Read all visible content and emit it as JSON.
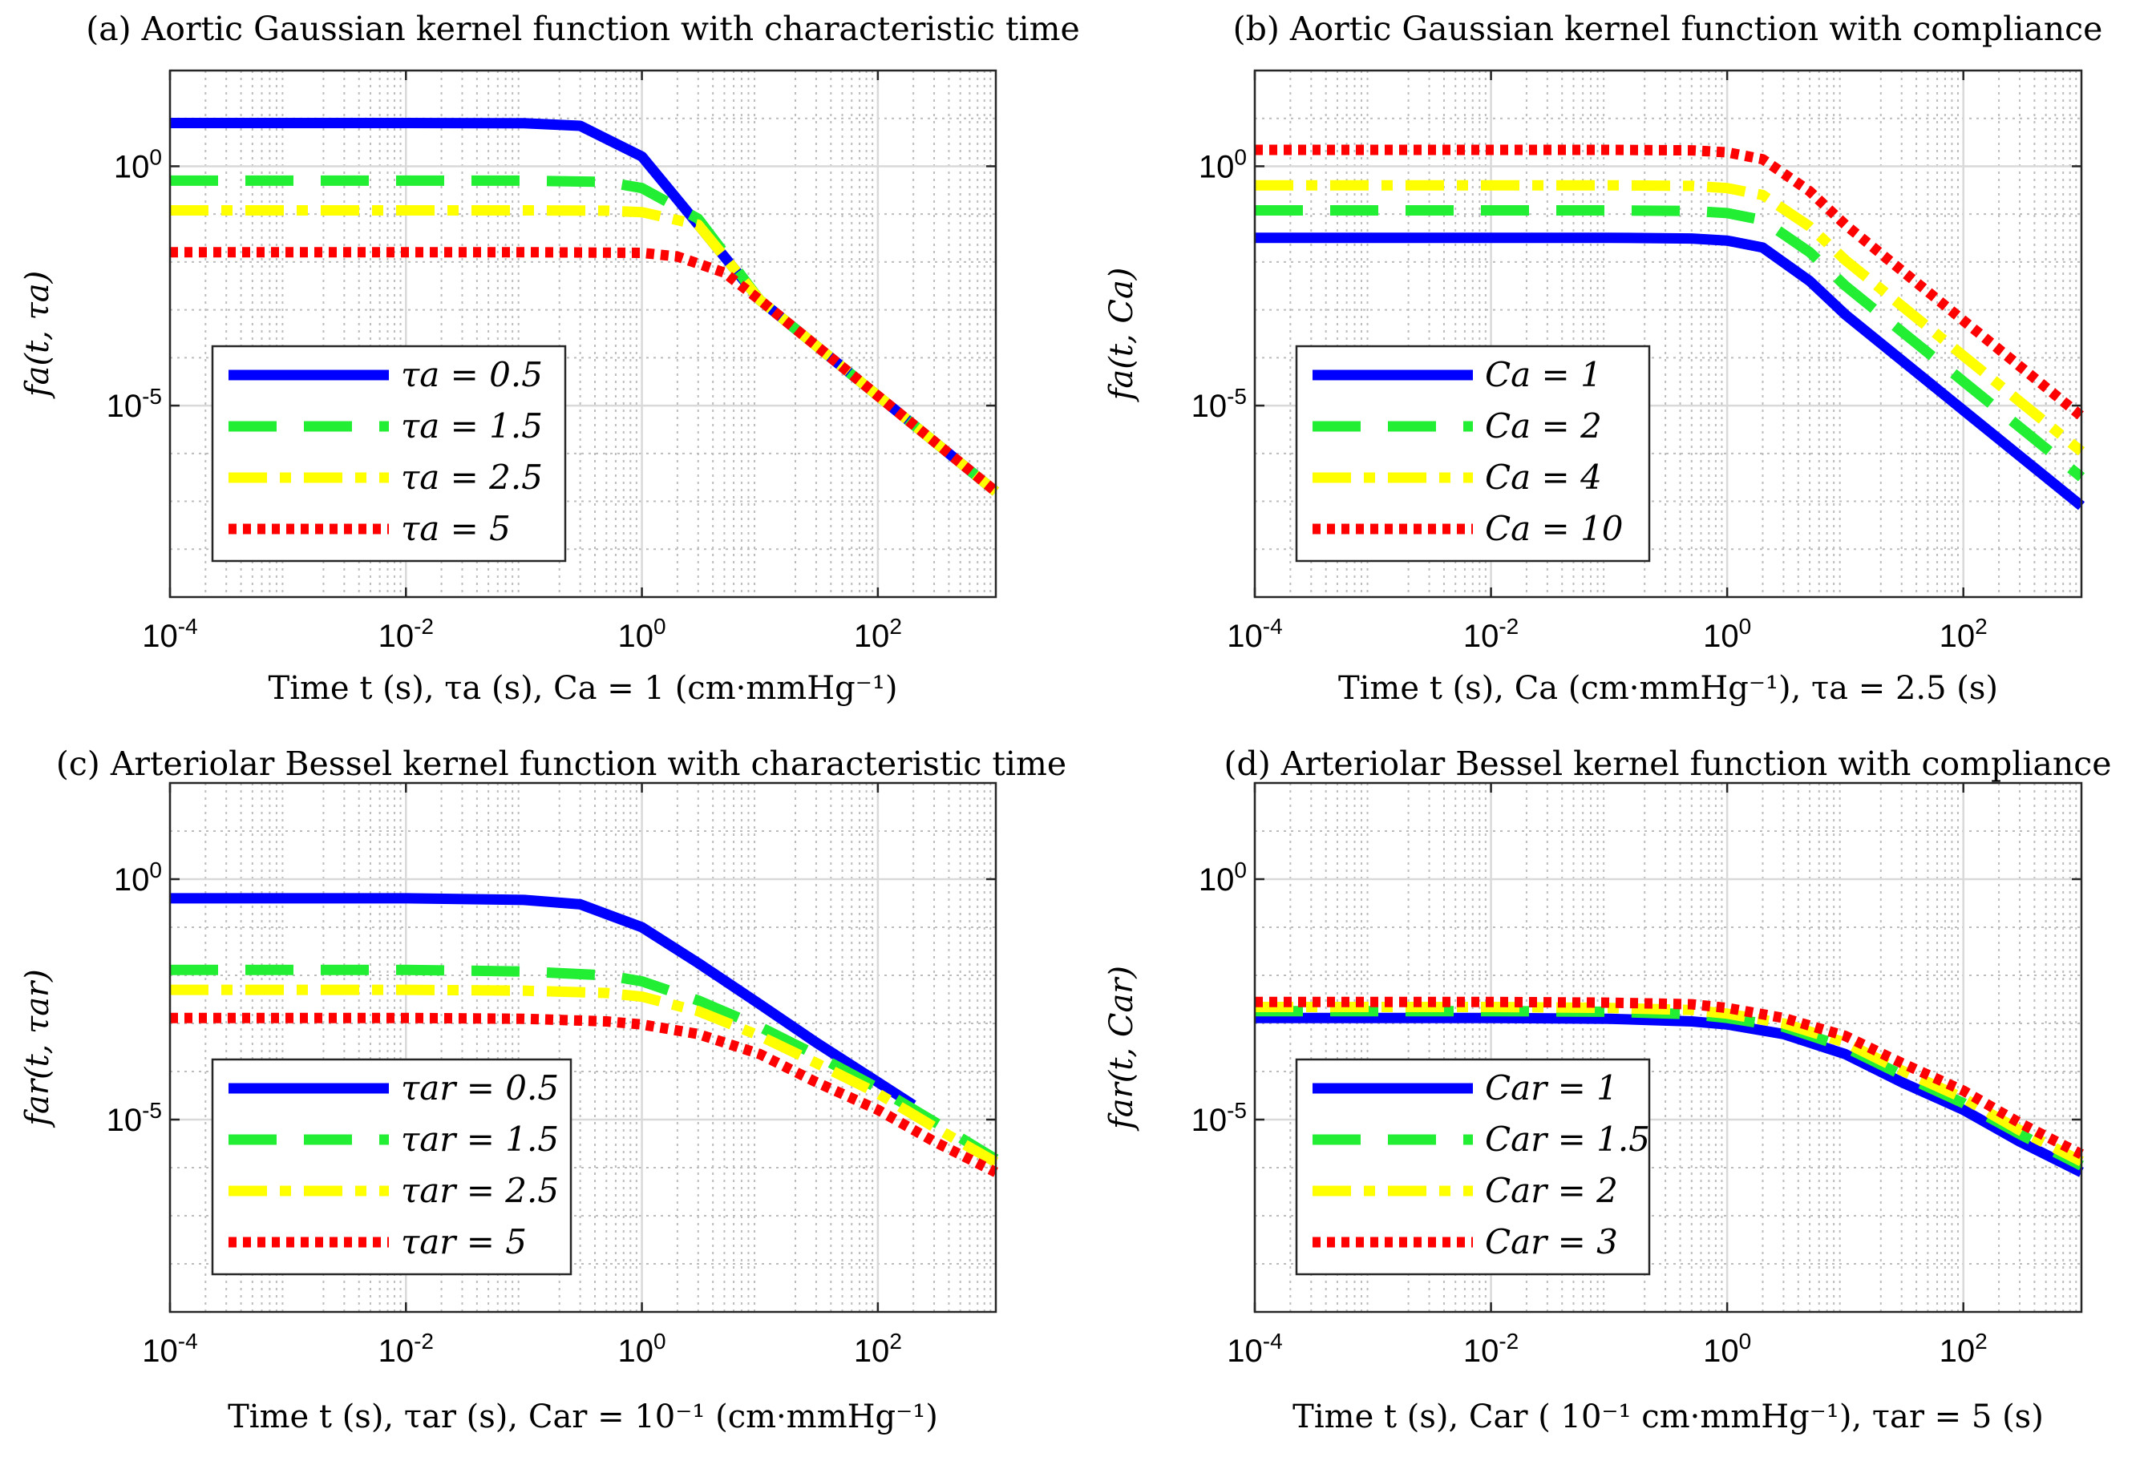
{
  "chart_data": [
    {
      "type": "line",
      "panel": "a",
      "title": "(a) Aortic Gaussian kernel function with characteristic time",
      "xlabel": "Time t (s), τa (s), Ca = 1 (cm·mmHg⁻¹)",
      "ylabel": "fa(t, τa)",
      "xscale": "log",
      "yscale": "log",
      "xlim": [
        0.0001,
        1000
      ],
      "ylim": [
        1e-09,
        100
      ],
      "xticks": [
        "10-4",
        "10-2",
        "100",
        "102"
      ],
      "yticks": [
        "100",
        "10-5"
      ],
      "grid": true,
      "legend_position": "lower-left",
      "series": [
        {
          "name": "τa = 0.5",
          "color": "#0000ff",
          "style": "solid",
          "x": [
            0.0001,
            0.01,
            0.1,
            0.3,
            1,
            3,
            10,
            100,
            1000
          ],
          "y": [
            8.0,
            8.0,
            7.9,
            7.0,
            1.6,
            0.06,
            0.0016,
            1.6e-05,
            1.6e-07
          ]
        },
        {
          "name": "τa = 1.5",
          "color": "#22ee33",
          "style": "dashed",
          "x": [
            0.0001,
            0.01,
            0.1,
            0.5,
            1,
            3,
            10,
            100,
            1000
          ],
          "y": [
            0.5,
            0.5,
            0.5,
            0.47,
            0.35,
            0.08,
            0.0016,
            1.6e-05,
            1.6e-07
          ]
        },
        {
          "name": "τa = 2.5",
          "color": "#ffff00",
          "style": "dashdot",
          "x": [
            0.0001,
            0.01,
            0.1,
            0.5,
            1,
            3,
            10,
            100,
            1000
          ],
          "y": [
            0.12,
            0.12,
            0.12,
            0.118,
            0.11,
            0.06,
            0.0016,
            1.6e-05,
            1.6e-07
          ]
        },
        {
          "name": "τa = 5",
          "color": "#ff0000",
          "style": "dotted",
          "x": [
            0.0001,
            0.01,
            0.1,
            1,
            2,
            5,
            10,
            100,
            1000
          ],
          "y": [
            0.016,
            0.016,
            0.016,
            0.0155,
            0.013,
            0.006,
            0.0016,
            1.6e-05,
            1.6e-07
          ]
        }
      ]
    },
    {
      "type": "line",
      "panel": "b",
      "title": "(b) Aortic Gaussian kernel function with compliance",
      "xlabel": "Time t (s), Ca (cm·mmHg⁻¹), τa = 2.5 (s)",
      "ylabel": "fa(t, Ca)",
      "xscale": "log",
      "yscale": "log",
      "xlim": [
        0.0001,
        1000
      ],
      "ylim": [
        1e-09,
        100
      ],
      "xticks": [
        "10-4",
        "10-2",
        "100",
        "102"
      ],
      "yticks": [
        "100",
        "10-5"
      ],
      "grid": true,
      "legend_position": "lower-left",
      "series": [
        {
          "name": "Ca = 1",
          "color": "#0000ff",
          "style": "solid",
          "x": [
            0.0001,
            0.01,
            0.1,
            0.5,
            1,
            2,
            5,
            10,
            100,
            1000
          ],
          "y": [
            0.032,
            0.032,
            0.032,
            0.031,
            0.028,
            0.02,
            0.004,
            0.0008,
            8e-06,
            8e-08
          ]
        },
        {
          "name": "Ca = 2",
          "color": "#22ee33",
          "style": "dashed",
          "x": [
            0.0001,
            0.01,
            0.1,
            0.5,
            1,
            2,
            5,
            10,
            100,
            1000
          ],
          "y": [
            0.12,
            0.12,
            0.12,
            0.116,
            0.105,
            0.075,
            0.016,
            0.0032,
            3.2e-05,
            3.2e-07
          ]
        },
        {
          "name": "Ca = 4",
          "color": "#ffff00",
          "style": "dashdot",
          "x": [
            0.0001,
            0.01,
            0.1,
            0.5,
            1,
            2,
            5,
            10,
            100,
            1000
          ],
          "y": [
            0.4,
            0.4,
            0.4,
            0.39,
            0.35,
            0.25,
            0.055,
            0.011,
            0.00011,
            1.1e-06
          ]
        },
        {
          "name": "Ca = 10",
          "color": "#ff0000",
          "style": "dotted",
          "x": [
            0.0001,
            0.01,
            0.1,
            0.5,
            1,
            2,
            5,
            10,
            100,
            1000
          ],
          "y": [
            2.2,
            2.2,
            2.2,
            2.15,
            1.95,
            1.4,
            0.3,
            0.06,
            0.0006,
            6e-06
          ]
        }
      ]
    },
    {
      "type": "line",
      "panel": "c",
      "title": "(c) Arteriolar Bessel kernel function with characteristic time",
      "xlabel": "Time t (s), τar (s), Car = 10⁻¹ (cm·mmHg⁻¹)",
      "ylabel": "far(t, τar)",
      "xscale": "log",
      "yscale": "log",
      "xlim": [
        0.0001,
        1000
      ],
      "ylim": [
        1e-09,
        100
      ],
      "xticks": [
        "10-4",
        "10-2",
        "100",
        "102"
      ],
      "yticks": [
        "100",
        "10-5"
      ],
      "grid": true,
      "legend_position": "lower-left",
      "series": [
        {
          "name": "τar = 0.5",
          "color": "#0000ff",
          "style": "solid",
          "x": [
            0.0001,
            0.01,
            0.1,
            0.3,
            1,
            3,
            10,
            30,
            100,
            200
          ],
          "y": [
            0.4,
            0.4,
            0.37,
            0.3,
            0.1,
            0.018,
            0.0025,
            0.0004,
            6e-05,
            2e-05
          ]
        },
        {
          "name": "τar = 1.5",
          "color": "#22ee33",
          "style": "dashed",
          "x": [
            0.0001,
            0.01,
            0.1,
            0.5,
            1,
            3,
            10,
            30,
            100,
            300,
            1000
          ],
          "y": [
            0.013,
            0.013,
            0.012,
            0.01,
            0.0075,
            0.003,
            0.00085,
            0.00022,
            4.5e-05,
            9e-06,
            1.5e-06
          ]
        },
        {
          "name": "τar = 2.5",
          "color": "#ffff00",
          "style": "dashdot",
          "x": [
            0.0001,
            0.01,
            0.1,
            0.5,
            1,
            3,
            10,
            30,
            100,
            300,
            1000
          ],
          "y": [
            0.005,
            0.005,
            0.0048,
            0.0043,
            0.0036,
            0.0018,
            0.00055,
            0.00015,
            3.5e-05,
            7e-06,
            1.3e-06
          ]
        },
        {
          "name": "τar = 5",
          "color": "#ff0000",
          "style": "dotted",
          "x": [
            0.0001,
            0.01,
            0.1,
            0.5,
            1,
            3,
            10,
            30,
            100,
            300,
            1000
          ],
          "y": [
            0.0013,
            0.0013,
            0.00125,
            0.0011,
            0.00095,
            0.0006,
            0.00023,
            6e-05,
            1.6e-05,
            3.5e-06,
            8e-07
          ]
        }
      ]
    },
    {
      "type": "line",
      "panel": "d",
      "title": "(d) Arteriolar Bessel kernel function with compliance",
      "xlabel": "Time t (s), Car ( 10⁻¹ cm·mmHg⁻¹), τar = 5 (s)",
      "ylabel": "far(t, Car)",
      "xscale": "log",
      "yscale": "log",
      "xlim": [
        0.0001,
        1000
      ],
      "ylim": [
        1e-09,
        100
      ],
      "xticks": [
        "10-4",
        "10-2",
        "100",
        "102"
      ],
      "yticks": [
        "100",
        "10-5"
      ],
      "grid": true,
      "legend_position": "lower-left",
      "series": [
        {
          "name": "Car = 1",
          "color": "#0000ff",
          "style": "solid",
          "x": [
            0.0001,
            0.01,
            0.1,
            0.5,
            1,
            3,
            10,
            30,
            100,
            300,
            1000
          ],
          "y": [
            0.0013,
            0.0013,
            0.00125,
            0.0011,
            0.00095,
            0.0006,
            0.00023,
            6e-05,
            1.6e-05,
            3.5e-06,
            8e-07
          ]
        },
        {
          "name": "Car = 1.5",
          "color": "#22ee33",
          "style": "dashed",
          "x": [
            0.0001,
            0.01,
            0.1,
            0.5,
            1,
            3,
            10,
            30,
            100,
            300,
            1000
          ],
          "y": [
            0.0018,
            0.0018,
            0.00175,
            0.00155,
            0.0013,
            0.00085,
            0.00032,
            8.5e-05,
            2.2e-05,
            5e-06,
            1.1e-06
          ]
        },
        {
          "name": "Car = 2",
          "color": "#ffff00",
          "style": "dashdot",
          "x": [
            0.0001,
            0.01,
            0.1,
            0.5,
            1,
            3,
            10,
            30,
            100,
            300,
            1000
          ],
          "y": [
            0.0022,
            0.0022,
            0.0021,
            0.0019,
            0.0016,
            0.001,
            0.0004,
            0.000105,
            2.8e-05,
            6e-06,
            1.35e-06
          ]
        },
        {
          "name": "Car = 3",
          "color": "#ff0000",
          "style": "dotted",
          "x": [
            0.0001,
            0.01,
            0.1,
            0.5,
            1,
            3,
            10,
            30,
            100,
            300,
            1000
          ],
          "y": [
            0.0028,
            0.0028,
            0.0027,
            0.0025,
            0.0021,
            0.0013,
            0.00055,
            0.00015,
            4e-05,
            8.5e-06,
            1.9e-06
          ]
        }
      ]
    }
  ]
}
